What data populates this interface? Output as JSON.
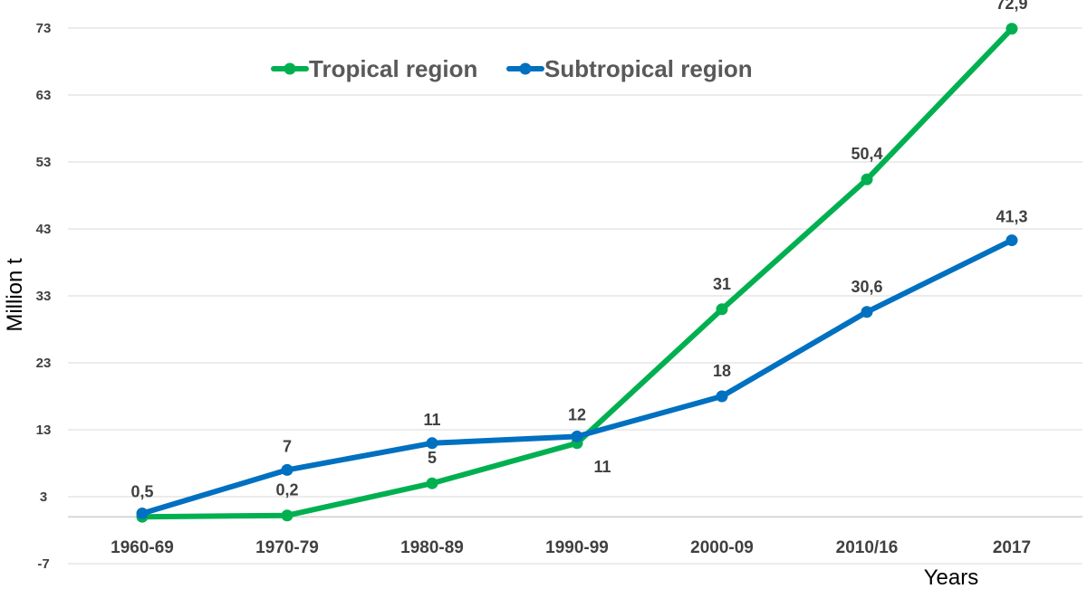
{
  "chart_data": {
    "type": "line",
    "categories": [
      "1960-69",
      "1970-79",
      "1980-89",
      "1990-99",
      "2000-09",
      "2010/16",
      "2017"
    ],
    "series": [
      {
        "name": "Tropical region",
        "color": "#00b050",
        "values": [
          0.0,
          0.2,
          5,
          11,
          31,
          50.4,
          72.9
        ],
        "labels": [
          "",
          "0,2",
          "5",
          "11",
          "31",
          "50,4",
          "72,9"
        ]
      },
      {
        "name": "Subtropical region",
        "color": "#0070c0",
        "values": [
          0.5,
          7,
          11,
          12,
          18,
          30.6,
          41.3
        ],
        "labels": [
          "0,5",
          "7",
          "11",
          "12",
          "18",
          "30,6",
          "41,3"
        ]
      }
    ],
    "yticks": [
      -7,
      3,
      13,
      23,
      33,
      43,
      53,
      63,
      73
    ],
    "ylim": [
      -7,
      73
    ],
    "ylabel": "Million t",
    "xlabel": "Years",
    "grid": true,
    "legend_position": "top-left"
  }
}
